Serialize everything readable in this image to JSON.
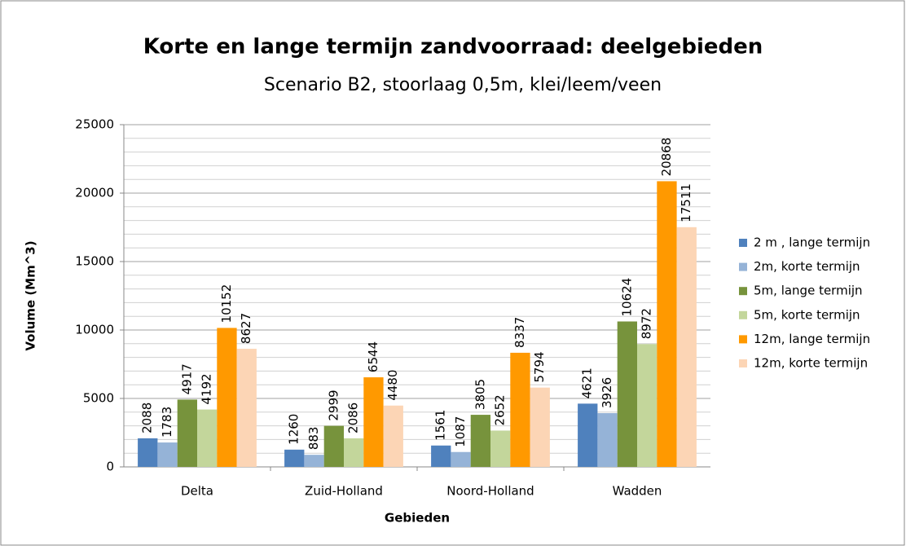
{
  "chart_data": {
    "type": "bar",
    "title": "Korte en lange termijn zandvoorraad: deelgebieden",
    "subtitle": "Scenario B2, stoorlaag 0,5m, klei/leem/veen",
    "x_label": "Gebieden",
    "y_label": "Volume (Mm^3)",
    "categories": [
      "Delta",
      "Zuid-Holland",
      "Noord-Holland",
      "Wadden"
    ],
    "series": [
      {
        "name": "2 m , lange termijn",
        "color": "#4f81bd",
        "values": [
          2088,
          1260,
          1561,
          4621
        ]
      },
      {
        "name": "2m, korte termijn",
        "color": "#95b3d7",
        "values": [
          1783,
          883,
          1087,
          3926
        ]
      },
      {
        "name": "5m, lange termijn",
        "color": "#77933c",
        "values": [
          4917,
          2999,
          3805,
          10624
        ]
      },
      {
        "name": "5m, korte termijn",
        "color": "#c3d69b",
        "values": [
          4192,
          2086,
          2652,
          8972
        ]
      },
      {
        "name": "12m, lange termijn",
        "color": "#ff9900",
        "values": [
          10152,
          6544,
          8337,
          20868
        ]
      },
      {
        "name": "12m, korte termijn",
        "color": "#fcd5b5",
        "values": [
          8627,
          4480,
          5794,
          17511
        ]
      }
    ],
    "ylim": [
      0,
      25000
    ],
    "yticks": [
      0,
      5000,
      10000,
      15000,
      20000,
      25000
    ],
    "yminorticks": [
      1000,
      2000,
      3000,
      4000,
      6000,
      7000,
      8000,
      9000,
      11000,
      12000,
      13000,
      14000,
      16000,
      17000,
      18000,
      19000,
      21000,
      22000,
      23000,
      24000
    ],
    "grid": true,
    "legend": "right"
  }
}
